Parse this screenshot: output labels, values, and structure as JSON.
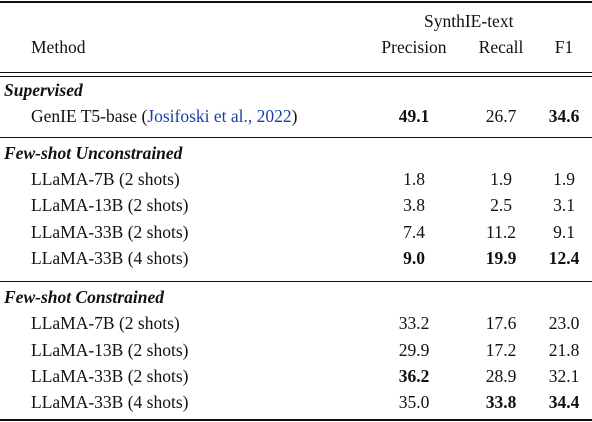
{
  "header": {
    "group_label": "SynthIE-text",
    "method_label": "Method",
    "precision_label": "Precision",
    "recall_label": "Recall",
    "f1_label": "F1"
  },
  "sections": [
    {
      "title": "Supervised",
      "rows": [
        {
          "method": "GenIE T5-base",
          "cite_open": "(",
          "cite": "Josifoski et al., 2022",
          "cite_close": ")",
          "precision": "49.1",
          "recall": "26.7",
          "f1": "34.6",
          "bold": [
            "precision",
            "f1"
          ]
        }
      ]
    },
    {
      "title": "Few-shot Unconstrained",
      "rows": [
        {
          "method": "LLaMA-7B (2 shots)",
          "precision": "1.8",
          "recall": "1.9",
          "f1": "1.9",
          "bold": []
        },
        {
          "method": "LLaMA-13B (2 shots)",
          "precision": "3.8",
          "recall": "2.5",
          "f1": "3.1",
          "bold": []
        },
        {
          "method": "LLaMA-33B (2 shots)",
          "precision": "7.4",
          "recall": "11.2",
          "f1": "9.1",
          "bold": []
        },
        {
          "method": "LLaMA-33B (4 shots)",
          "precision": "9.0",
          "recall": "19.9",
          "f1": "12.4",
          "bold": [
            "precision",
            "recall",
            "f1"
          ]
        }
      ]
    },
    {
      "title": "Few-shot Constrained",
      "rows": [
        {
          "method": "LLaMA-7B (2 shots)",
          "precision": "33.2",
          "recall": "17.6",
          "f1": "23.0",
          "bold": []
        },
        {
          "method": "LLaMA-13B (2 shots)",
          "precision": "29.9",
          "recall": "17.2",
          "f1": "21.8",
          "bold": []
        },
        {
          "method": "LLaMA-33B (2 shots)",
          "precision": "36.2",
          "recall": "28.9",
          "f1": "32.1",
          "bold": [
            "precision"
          ]
        },
        {
          "method": "LLaMA-33B (4 shots)",
          "precision": "35.0",
          "recall": "33.8",
          "f1": "34.4",
          "bold": [
            "recall",
            "f1"
          ]
        }
      ]
    }
  ]
}
